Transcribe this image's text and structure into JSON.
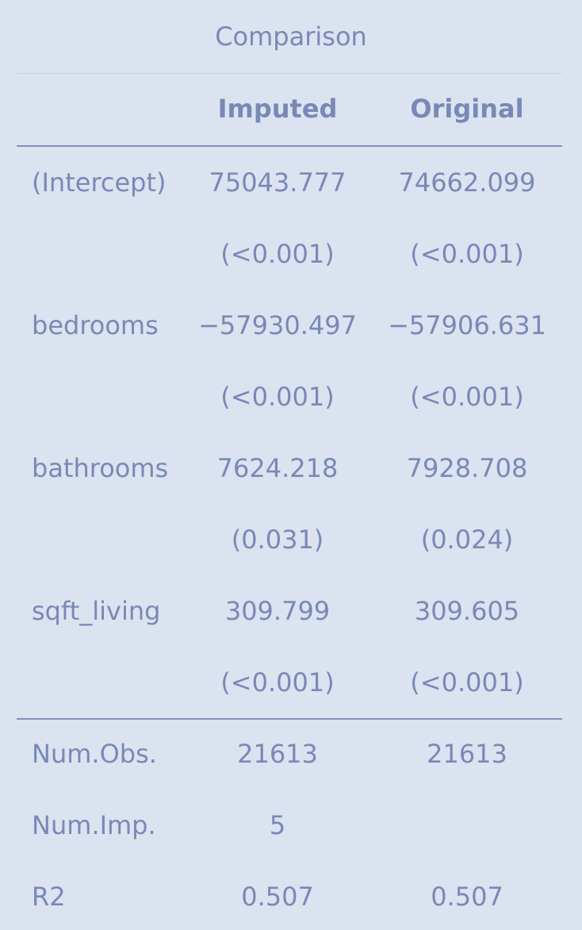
{
  "table": {
    "caption": "Comparison",
    "columns": [
      "",
      "Imputed",
      "Original"
    ],
    "body_rows": [
      {
        "label": "(Intercept)",
        "imputed": "75043.777",
        "original": "74662.099"
      },
      {
        "label": "",
        "imputed": "(<0.001)",
        "original": "(<0.001)"
      },
      {
        "label": "bedrooms",
        "imputed": "−57930.497",
        "original": "−57906.631"
      },
      {
        "label": "",
        "imputed": "(<0.001)",
        "original": "(<0.001)"
      },
      {
        "label": "bathrooms",
        "imputed": "7624.218",
        "original": "7928.708"
      },
      {
        "label": "",
        "imputed": "(0.031)",
        "original": "(0.024)"
      },
      {
        "label": "sqft_living",
        "imputed": "309.799",
        "original": "309.605"
      },
      {
        "label": "",
        "imputed": "(<0.001)",
        "original": "(<0.001)"
      }
    ],
    "stat_rows": [
      {
        "label": "Num.Obs.",
        "imputed": "21613",
        "original": "21613"
      },
      {
        "label": "Num.Imp.",
        "imputed": "5",
        "original": ""
      },
      {
        "label": "R2",
        "imputed": "0.507",
        "original": "0.507"
      }
    ]
  },
  "colors": {
    "background": "#dbe3f0",
    "text": "#7a88b6",
    "rule": "#8390bd"
  }
}
